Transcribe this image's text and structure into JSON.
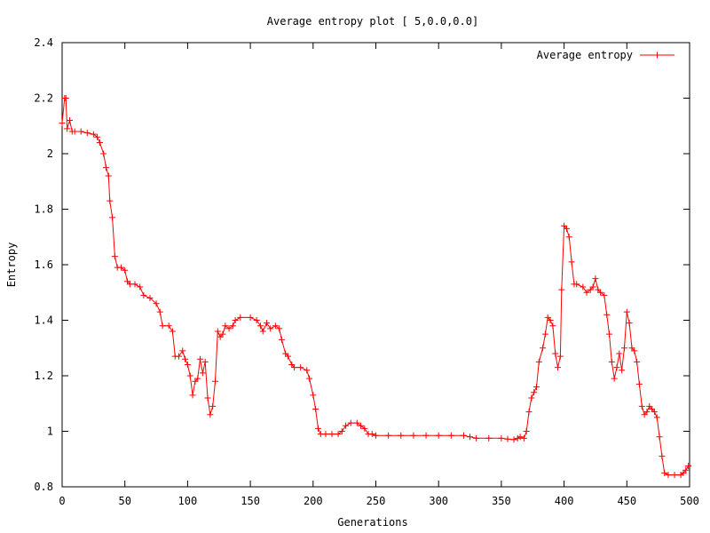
{
  "chart_data": {
    "type": "line",
    "title": "Average entropy plot [ 5,0.0,0.0]",
    "xlabel": "Generations",
    "ylabel": "Entropy",
    "xlim": [
      0,
      500
    ],
    "ylim": [
      0.8,
      2.4
    ],
    "xticks": [
      0,
      50,
      100,
      150,
      200,
      250,
      300,
      350,
      400,
      450,
      500
    ],
    "yticks": [
      0.8,
      1,
      1.2,
      1.4,
      1.6,
      1.8,
      2,
      2.2,
      2.4
    ],
    "ytick_labels": [
      "0.8",
      "1",
      "1.2",
      "1.4",
      "1.6",
      "1.8",
      "2",
      "2.2",
      "2.4"
    ],
    "grid": false,
    "legend_position": "top-right",
    "series": [
      {
        "name": "Average entropy",
        "color": "#ff0000",
        "marker": "plus",
        "points": [
          [
            0,
            2.11
          ],
          [
            2,
            2.2
          ],
          [
            3,
            2.2
          ],
          [
            4,
            2.09
          ],
          [
            6,
            2.12
          ],
          [
            8,
            2.08
          ],
          [
            10,
            2.08
          ],
          [
            15,
            2.08
          ],
          [
            20,
            2.075
          ],
          [
            25,
            2.07
          ],
          [
            28,
            2.06
          ],
          [
            30,
            2.04
          ],
          [
            33,
            2.0
          ],
          [
            35,
            1.95
          ],
          [
            37,
            1.92
          ],
          [
            38,
            1.83
          ],
          [
            40,
            1.77
          ],
          [
            42,
            1.63
          ],
          [
            44,
            1.59
          ],
          [
            47,
            1.59
          ],
          [
            50,
            1.58
          ],
          [
            52,
            1.54
          ],
          [
            54,
            1.53
          ],
          [
            58,
            1.53
          ],
          [
            62,
            1.52
          ],
          [
            65,
            1.49
          ],
          [
            70,
            1.48
          ],
          [
            75,
            1.46
          ],
          [
            78,
            1.43
          ],
          [
            80,
            1.38
          ],
          [
            85,
            1.38
          ],
          [
            88,
            1.36
          ],
          [
            90,
            1.27
          ],
          [
            93,
            1.27
          ],
          [
            96,
            1.29
          ],
          [
            98,
            1.26
          ],
          [
            100,
            1.24
          ],
          [
            102,
            1.2
          ],
          [
            104,
            1.13
          ],
          [
            106,
            1.18
          ],
          [
            108,
            1.19
          ],
          [
            110,
            1.26
          ],
          [
            112,
            1.21
          ],
          [
            114,
            1.25
          ],
          [
            116,
            1.12
          ],
          [
            118,
            1.06
          ],
          [
            120,
            1.09
          ],
          [
            122,
            1.18
          ],
          [
            124,
            1.36
          ],
          [
            126,
            1.34
          ],
          [
            128,
            1.35
          ],
          [
            130,
            1.38
          ],
          [
            133,
            1.37
          ],
          [
            136,
            1.38
          ],
          [
            138,
            1.4
          ],
          [
            142,
            1.41
          ],
          [
            150,
            1.41
          ],
          [
            155,
            1.4
          ],
          [
            158,
            1.38
          ],
          [
            160,
            1.36
          ],
          [
            163,
            1.39
          ],
          [
            166,
            1.37
          ],
          [
            170,
            1.38
          ],
          [
            173,
            1.37
          ],
          [
            175,
            1.33
          ],
          [
            178,
            1.28
          ],
          [
            180,
            1.27
          ],
          [
            183,
            1.24
          ],
          [
            185,
            1.23
          ],
          [
            190,
            1.23
          ],
          [
            195,
            1.22
          ],
          [
            197,
            1.19
          ],
          [
            200,
            1.13
          ],
          [
            202,
            1.08
          ],
          [
            204,
            1.01
          ],
          [
            206,
            0.99
          ],
          [
            210,
            0.99
          ],
          [
            215,
            0.99
          ],
          [
            220,
            0.99
          ],
          [
            223,
            1.0
          ],
          [
            226,
            1.02
          ],
          [
            230,
            1.03
          ],
          [
            235,
            1.03
          ],
          [
            238,
            1.02
          ],
          [
            241,
            1.01
          ],
          [
            244,
            0.99
          ],
          [
            247,
            0.99
          ],
          [
            250,
            0.985
          ],
          [
            260,
            0.985
          ],
          [
            270,
            0.985
          ],
          [
            280,
            0.985
          ],
          [
            290,
            0.985
          ],
          [
            300,
            0.985
          ],
          [
            310,
            0.985
          ],
          [
            320,
            0.985
          ],
          [
            325,
            0.98
          ],
          [
            330,
            0.975
          ],
          [
            340,
            0.975
          ],
          [
            350,
            0.975
          ],
          [
            355,
            0.972
          ],
          [
            360,
            0.97
          ],
          [
            363,
            0.975
          ],
          [
            365,
            0.98
          ],
          [
            368,
            0.975
          ],
          [
            370,
            1.0
          ],
          [
            372,
            1.07
          ],
          [
            374,
            1.12
          ],
          [
            376,
            1.14
          ],
          [
            378,
            1.16
          ],
          [
            380,
            1.25
          ],
          [
            383,
            1.3
          ],
          [
            385,
            1.35
          ],
          [
            387,
            1.41
          ],
          [
            389,
            1.4
          ],
          [
            391,
            1.38
          ],
          [
            393,
            1.28
          ],
          [
            395,
            1.23
          ],
          [
            397,
            1.27
          ],
          [
            398,
            1.51
          ],
          [
            400,
            1.74
          ],
          [
            402,
            1.73
          ],
          [
            404,
            1.7
          ],
          [
            406,
            1.61
          ],
          [
            408,
            1.53
          ],
          [
            410,
            1.53
          ],
          [
            415,
            1.52
          ],
          [
            418,
            1.5
          ],
          [
            421,
            1.51
          ],
          [
            423,
            1.52
          ],
          [
            425,
            1.55
          ],
          [
            427,
            1.51
          ],
          [
            429,
            1.5
          ],
          [
            432,
            1.49
          ],
          [
            434,
            1.42
          ],
          [
            436,
            1.35
          ],
          [
            438,
            1.25
          ],
          [
            440,
            1.19
          ],
          [
            442,
            1.23
          ],
          [
            444,
            1.28
          ],
          [
            446,
            1.22
          ],
          [
            448,
            1.3
          ],
          [
            450,
            1.43
          ],
          [
            452,
            1.39
          ],
          [
            454,
            1.3
          ],
          [
            456,
            1.29
          ],
          [
            458,
            1.25
          ],
          [
            460,
            1.17
          ],
          [
            462,
            1.09
          ],
          [
            464,
            1.06
          ],
          [
            466,
            1.07
          ],
          [
            468,
            1.09
          ],
          [
            470,
            1.08
          ],
          [
            472,
            1.07
          ],
          [
            474,
            1.05
          ],
          [
            476,
            0.98
          ],
          [
            478,
            0.91
          ],
          [
            480,
            0.85
          ],
          [
            483,
            0.843
          ],
          [
            488,
            0.843
          ],
          [
            493,
            0.843
          ],
          [
            495,
            0.85
          ],
          [
            497,
            0.86
          ],
          [
            499,
            0.875
          ]
        ]
      }
    ]
  }
}
